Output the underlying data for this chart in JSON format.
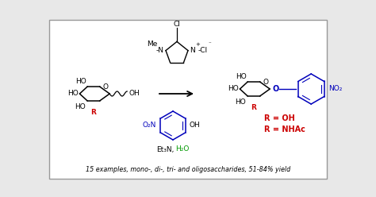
{
  "bg_color": "#e8e8e8",
  "box_bg": "#ffffff",
  "box_edge": "#999999",
  "c_black": "#000000",
  "c_red": "#cc0000",
  "c_blue": "#0000bb",
  "c_green": "#009900",
  "bottom_text": "15 examples, mono-, di-, tri- and oligosaccharides, 51-84% yield",
  "r_oh": "R = OH",
  "r_nhac": "R = NHAc",
  "fig_w": 4.74,
  "fig_h": 2.48,
  "dpi": 100
}
